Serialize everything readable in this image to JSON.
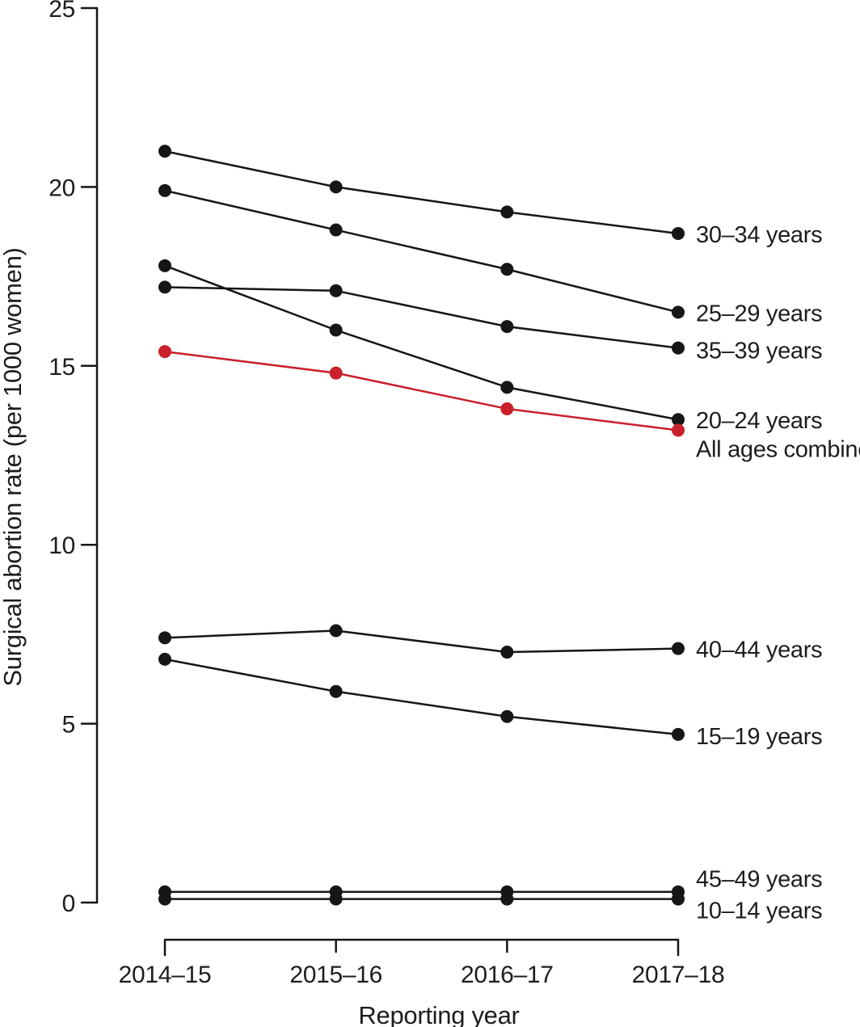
{
  "colors": {
    "ink": "#161615",
    "text": "#1d1d1b",
    "accent_red": "#c9202b",
    "background": "#ffffff"
  },
  "chart_data": {
    "type": "line",
    "title": "",
    "xlabel": "Reporting year",
    "ylabel": "Surgical abortion rate (per 1000 women)",
    "categories": [
      "2014–15",
      "2015–16",
      "2016–17",
      "2017–18"
    ],
    "y_ticks": [
      0,
      5,
      10,
      15,
      20,
      25
    ],
    "ylim": [
      0,
      25
    ],
    "grid": false,
    "legend_position": "end-of-line-right-labels",
    "marker": "filled-circle",
    "series": [
      {
        "name": "30–34 years",
        "values": [
          21.0,
          20.0,
          19.3,
          18.7
        ],
        "color": "#161615",
        "label_dy": 0
      },
      {
        "name": "25–29 years",
        "values": [
          19.9,
          18.8,
          17.7,
          16.5
        ],
        "color": "#161615",
        "label_dy": 0
      },
      {
        "name": "35–39 years",
        "values": [
          17.2,
          17.1,
          16.1,
          15.5
        ],
        "color": "#161615",
        "label_dy": 2
      },
      {
        "name": "20–24 years",
        "values": [
          17.8,
          16.0,
          14.4,
          13.5
        ],
        "color": "#161615",
        "label_dy": 0
      },
      {
        "name": "All ages combined",
        "values": [
          15.4,
          14.8,
          13.8,
          13.2
        ],
        "color": "#c9202b",
        "label_dy": 22
      },
      {
        "name": "40–44 years",
        "values": [
          7.4,
          7.6,
          7.0,
          7.1
        ],
        "color": "#161615",
        "label_dy": 0
      },
      {
        "name": "15–19 years",
        "values": [
          6.8,
          5.9,
          5.2,
          4.7
        ],
        "color": "#161615",
        "label_dy": 1
      },
      {
        "name": "45–49 years",
        "values": [
          0.3,
          0.3,
          0.3,
          0.3
        ],
        "color": "#161615",
        "label_dy": -17
      },
      {
        "name": "10–14 years",
        "values": [
          0.1,
          0.1,
          0.1,
          0.1
        ],
        "color": "#161615",
        "label_dy": 13
      }
    ]
  }
}
